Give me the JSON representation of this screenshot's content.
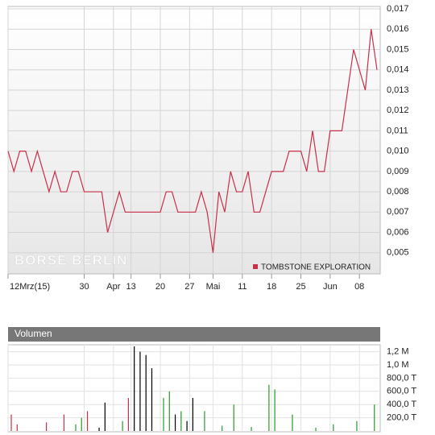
{
  "chart_data": [
    {
      "type": "line",
      "categories": [
        "12Mrz(15)",
        null,
        null,
        null,
        null,
        null,
        null,
        null,
        null,
        null,
        null,
        null,
        null,
        "30",
        null,
        null,
        null,
        null,
        "Apr",
        null,
        null,
        "13",
        null,
        null,
        null,
        null,
        "20",
        null,
        null,
        null,
        null,
        "27",
        null,
        null,
        null,
        "Mai",
        null,
        null,
        null,
        null,
        "11",
        null,
        null,
        null,
        null,
        "18",
        null,
        null,
        null,
        null,
        "25",
        null,
        null,
        null,
        null,
        "Jun",
        null,
        null,
        null,
        null,
        "08",
        null,
        null,
        null
      ],
      "series": [
        {
          "name": "TOMBSTONE EXPLORATION",
          "color": "#c8304a",
          "values": [
            0.01,
            0.009,
            0.01,
            0.01,
            0.009,
            0.01,
            0.009,
            0.008,
            0.009,
            0.008,
            0.008,
            0.009,
            0.009,
            0.008,
            0.008,
            0.008,
            0.008,
            0.006,
            0.007,
            0.008,
            0.007,
            0.007,
            0.007,
            0.007,
            0.007,
            0.007,
            0.007,
            0.008,
            0.008,
            0.007,
            0.007,
            0.007,
            0.007,
            0.008,
            0.007,
            0.005,
            0.008,
            0.007,
            0.009,
            0.008,
            0.008,
            0.009,
            0.007,
            0.007,
            0.008,
            0.009,
            0.009,
            0.009,
            0.01,
            0.01,
            0.01,
            0.009,
            0.011,
            0.009,
            0.009,
            0.011,
            0.011,
            0.011,
            0.013,
            0.015,
            0.014,
            0.013,
            0.016,
            0.014
          ]
        }
      ],
      "ylim": [
        0.004,
        0.017
      ],
      "yticks": [
        {
          "value": 0.005,
          "label": "0,005"
        },
        {
          "value": 0.006,
          "label": "0,006"
        },
        {
          "value": 0.007,
          "label": "0,007"
        },
        {
          "value": 0.008,
          "label": "0,008"
        },
        {
          "value": 0.009,
          "label": "0,009"
        },
        {
          "value": 0.01,
          "label": "0,010"
        },
        {
          "value": 0.011,
          "label": "0,011"
        },
        {
          "value": 0.012,
          "label": "0,012"
        },
        {
          "value": 0.013,
          "label": "0,013"
        },
        {
          "value": 0.014,
          "label": "0,014"
        },
        {
          "value": 0.015,
          "label": "0,015"
        },
        {
          "value": 0.016,
          "label": "0,016"
        },
        {
          "value": 0.017,
          "label": "0,017"
        }
      ],
      "grid": true,
      "legend": "lower right",
      "annotation": "BÖRSE BERLIN"
    },
    {
      "type": "bar",
      "title": "Volumen",
      "values": [
        250000,
        100000,
        null,
        null,
        null,
        null,
        130000,
        null,
        null,
        250000,
        null,
        100000,
        200000,
        300000,
        null,
        50000,
        430000,
        null,
        null,
        150000,
        500000,
        1280000,
        1200000,
        1150000,
        950000,
        null,
        500000,
        600000,
        250000,
        300000,
        150000,
        500000,
        null,
        300000,
        null,
        null,
        80000,
        null,
        400000,
        null,
        null,
        60000,
        null,
        null,
        700000,
        630000,
        null,
        null,
        250000,
        null,
        null,
        null,
        50000,
        null,
        null,
        100000,
        null,
        null,
        null,
        150000,
        null,
        null,
        400000,
        null
      ],
      "colors": [
        "#c8304a",
        "#c8304a",
        null,
        null,
        null,
        null,
        "#c8304a",
        null,
        null,
        "#c8304a",
        null,
        "#2a9a2a",
        "#2a9a2a",
        "#c8304a",
        null,
        "#000000",
        "#000000",
        null,
        null,
        "#2a9a2a",
        "#c8304a",
        "#000000",
        "#000000",
        "#000000",
        "#000000",
        null,
        "#2a9a2a",
        "#2a9a2a",
        "#000000",
        "#2a9a2a",
        "#000000",
        "#000000",
        null,
        "#2a9a2a",
        null,
        null,
        "#2a9a2a",
        null,
        "#2a9a2a",
        null,
        null,
        "#2a9a2a",
        null,
        null,
        "#2a9a2a",
        "#2a9a2a",
        null,
        null,
        "#2a9a2a",
        null,
        null,
        null,
        "#2a9a2a",
        null,
        null,
        "#2a9a2a",
        null,
        null,
        null,
        "#2a9a2a",
        null,
        null,
        "#2a9a2a",
        null
      ],
      "ylim": [
        0,
        1280000
      ],
      "yticks": [
        {
          "value": 200000,
          "label": "200,0 T"
        },
        {
          "value": 400000,
          "label": "400,0 T"
        },
        {
          "value": 600000,
          "label": "600,0 T"
        },
        {
          "value": 800000,
          "label": "800,0 T"
        },
        {
          "value": 1000000,
          "label": "1,0 M"
        },
        {
          "value": 1200000,
          "label": "1,2 M"
        }
      ],
      "grid": true
    }
  ]
}
